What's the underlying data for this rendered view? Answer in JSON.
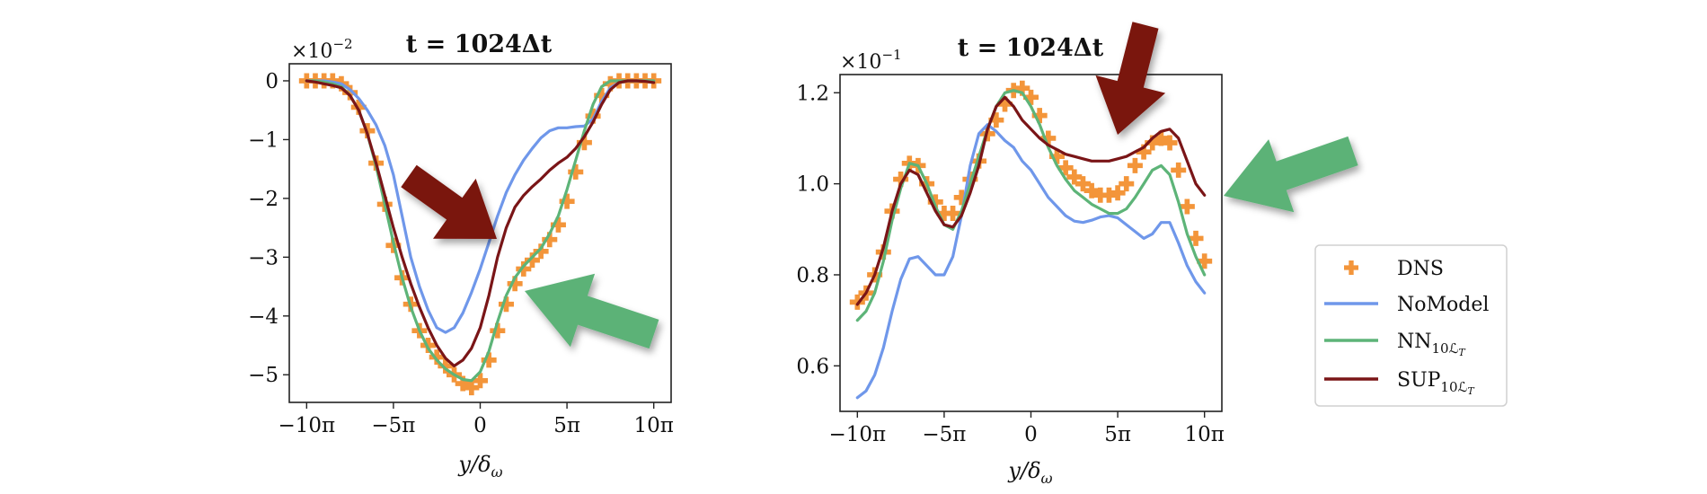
{
  "colors": {
    "dns": "#f3953a",
    "nomodel": "#6f97ea",
    "nn": "#5db478",
    "sup": "#7a1517",
    "arrow_red": "#7a1510",
    "arrow_green": "#5cb277"
  },
  "legend": {
    "placement": "right",
    "entries": [
      {
        "key": "dns",
        "label": "DNS",
        "sub": "",
        "subsub": "",
        "marker": "plus"
      },
      {
        "key": "nomodel",
        "label": "NoModel",
        "sub": "",
        "subsub": "",
        "marker": "line"
      },
      {
        "key": "nn",
        "label": "NN",
        "sub": "10ℒ",
        "subsub": "T",
        "marker": "line"
      },
      {
        "key": "sup",
        "label": "SUP",
        "sub": "10ℒ",
        "subsub": "T",
        "marker": "line"
      }
    ]
  },
  "chart_data": [
    {
      "type": "line",
      "title": "t = 1024Δt",
      "multiplier": "×10",
      "multiplier_exp": "−2",
      "xlabel": "y/δ",
      "xlabel_sub": "ω",
      "xlim": [
        -11,
        11
      ],
      "ylim": [
        -5.47,
        0.29
      ],
      "xticks": [
        {
          "v": -10,
          "label": "−10π"
        },
        {
          "v": -5,
          "label": "−5π"
        },
        {
          "v": 0,
          "label": "0"
        },
        {
          "v": 5,
          "label": "5π"
        },
        {
          "v": 10,
          "label": "10π"
        }
      ],
      "yticks": [
        {
          "v": 0,
          "label": "0"
        },
        {
          "v": -1,
          "label": "−1"
        },
        {
          "v": -2,
          "label": "−2"
        },
        {
          "v": -3,
          "label": "−3"
        },
        {
          "v": -4,
          "label": "−4"
        },
        {
          "v": -5,
          "label": "−5"
        }
      ],
      "x": [
        -10,
        -9.5,
        -9,
        -8.5,
        -8,
        -7.5,
        -7,
        -6.5,
        -6,
        -5.5,
        -5,
        -4.5,
        -4,
        -3.5,
        -3,
        -2.5,
        -2,
        -1.5,
        -1,
        -0.5,
        0,
        0.5,
        1,
        1.5,
        2,
        2.5,
        3,
        3.5,
        4,
        4.5,
        5,
        5.5,
        6,
        6.5,
        7,
        7.5,
        8,
        8.5,
        9,
        9.5,
        10
      ],
      "series": [
        {
          "key": "dns",
          "name": "DNS",
          "values": [
            0,
            0,
            0,
            0,
            -0.05,
            -0.2,
            -0.45,
            -0.85,
            -1.4,
            -2.1,
            -2.8,
            -3.35,
            -3.8,
            -4.25,
            -4.5,
            -4.7,
            -4.85,
            -5.0,
            -5.15,
            -5.22,
            -5.1,
            -4.75,
            -4.25,
            -3.8,
            -3.45,
            -3.2,
            -3.05,
            -2.9,
            -2.7,
            -2.45,
            -2.05,
            -1.55,
            -1.05,
            -0.6,
            -0.25,
            -0.05,
            0,
            0,
            0,
            0,
            0
          ]
        },
        {
          "key": "nomodel",
          "name": "NoModel",
          "values": [
            0,
            0,
            0,
            -0.02,
            -0.05,
            -0.15,
            -0.3,
            -0.5,
            -0.75,
            -1.1,
            -1.6,
            -2.3,
            -3.0,
            -3.5,
            -3.9,
            -4.2,
            -4.28,
            -4.2,
            -3.95,
            -3.6,
            -3.2,
            -2.75,
            -2.3,
            -1.9,
            -1.6,
            -1.35,
            -1.15,
            -0.97,
            -0.85,
            -0.8,
            -0.8,
            -0.78,
            -0.77,
            -0.65,
            -0.35,
            -0.12,
            -0.03,
            0,
            0,
            0,
            0
          ]
        },
        {
          "key": "nn",
          "name": "NN10ℒT",
          "values": [
            0,
            0,
            -0.02,
            -0.05,
            -0.1,
            -0.25,
            -0.5,
            -0.9,
            -1.45,
            -2.1,
            -2.75,
            -3.35,
            -3.85,
            -4.25,
            -4.55,
            -4.75,
            -4.9,
            -5.0,
            -5.08,
            -5.1,
            -4.95,
            -4.6,
            -4.1,
            -3.65,
            -3.35,
            -3.15,
            -3.0,
            -2.85,
            -2.6,
            -2.3,
            -1.85,
            -1.35,
            -0.85,
            -0.4,
            -0.1,
            0,
            0,
            0,
            0,
            0,
            0
          ]
        },
        {
          "key": "sup",
          "name": "SUP10ℒT",
          "values": [
            0,
            -0.02,
            -0.05,
            -0.08,
            -0.12,
            -0.25,
            -0.5,
            -0.9,
            -1.4,
            -1.95,
            -2.5,
            -3.0,
            -3.45,
            -3.85,
            -4.2,
            -4.5,
            -4.72,
            -4.85,
            -4.75,
            -4.55,
            -4.2,
            -3.65,
            -3.0,
            -2.5,
            -2.15,
            -1.95,
            -1.8,
            -1.67,
            -1.52,
            -1.4,
            -1.3,
            -1.15,
            -0.95,
            -0.7,
            -0.4,
            -0.15,
            -0.03,
            0,
            0,
            -0.01,
            -0.03
          ]
        }
      ]
    },
    {
      "type": "line",
      "title": "t = 1024Δt",
      "multiplier": "×10",
      "multiplier_exp": "−1",
      "xlabel": "y/δ",
      "xlabel_sub": "ω",
      "xlim": [
        -11,
        11
      ],
      "ylim": [
        0.5,
        1.24
      ],
      "xticks": [
        {
          "v": -10,
          "label": "−10π"
        },
        {
          "v": -5,
          "label": "−5π"
        },
        {
          "v": 0,
          "label": "0"
        },
        {
          "v": 5,
          "label": "5π"
        },
        {
          "v": 10,
          "label": "10π"
        }
      ],
      "yticks": [
        {
          "v": 1.2,
          "label": "1.2"
        },
        {
          "v": 1.0,
          "label": "1.0"
        },
        {
          "v": 0.8,
          "label": "0.8"
        },
        {
          "v": 0.6,
          "label": "0.6"
        }
      ],
      "x": [
        -10,
        -9.5,
        -9,
        -8.5,
        -8,
        -7.5,
        -7,
        -6.5,
        -6,
        -5.5,
        -5,
        -4.5,
        -4,
        -3.5,
        -3,
        -2.5,
        -2,
        -1.5,
        -1,
        -0.5,
        0,
        0.5,
        1,
        1.5,
        2,
        2.5,
        3,
        3.5,
        4,
        4.5,
        5,
        5.5,
        6,
        6.5,
        7,
        7.5,
        8,
        8.5,
        9,
        9.5,
        10
      ],
      "series": [
        {
          "key": "dns",
          "name": "DNS",
          "values": [
            0.74,
            0.76,
            0.8,
            0.85,
            0.94,
            1.01,
            1.045,
            1.04,
            1.0,
            0.96,
            0.935,
            0.935,
            0.97,
            1.01,
            1.05,
            1.11,
            1.14,
            1.175,
            1.205,
            1.21,
            1.19,
            1.15,
            1.1,
            1.06,
            1.035,
            1.015,
            1.0,
            0.985,
            0.975,
            0.975,
            0.98,
            1.0,
            1.04,
            1.07,
            1.09,
            1.1,
            1.09,
            1.03,
            0.95,
            0.88,
            0.83
          ]
        },
        {
          "key": "nomodel",
          "name": "NoModel",
          "values": [
            0.53,
            0.545,
            0.58,
            0.64,
            0.72,
            0.79,
            0.835,
            0.84,
            0.82,
            0.8,
            0.8,
            0.84,
            0.93,
            1.04,
            1.11,
            1.13,
            1.115,
            1.095,
            1.08,
            1.05,
            1.03,
            1.0,
            0.97,
            0.95,
            0.93,
            0.918,
            0.915,
            0.92,
            0.927,
            0.93,
            0.925,
            0.91,
            0.895,
            0.88,
            0.89,
            0.915,
            0.915,
            0.87,
            0.82,
            0.785,
            0.76
          ]
        },
        {
          "key": "nn",
          "name": "NN10ℒT",
          "values": [
            0.7,
            0.72,
            0.76,
            0.83,
            0.92,
            0.99,
            1.045,
            1.04,
            1.0,
            0.95,
            0.91,
            0.9,
            0.94,
            1.0,
            1.06,
            1.12,
            1.17,
            1.2,
            1.205,
            1.2,
            1.17,
            1.13,
            1.08,
            1.04,
            1.01,
            0.985,
            0.97,
            0.955,
            0.945,
            0.935,
            0.935,
            0.945,
            0.97,
            1.0,
            1.03,
            1.04,
            1.02,
            0.96,
            0.89,
            0.84,
            0.8
          ]
        },
        {
          "key": "sup",
          "name": "SUP10ℒT",
          "values": [
            0.735,
            0.76,
            0.8,
            0.86,
            0.94,
            1.0,
            1.03,
            1.02,
            0.98,
            0.94,
            0.91,
            0.905,
            0.93,
            0.98,
            1.04,
            1.12,
            1.17,
            1.19,
            1.17,
            1.14,
            1.12,
            1.1,
            1.085,
            1.075,
            1.065,
            1.06,
            1.055,
            1.05,
            1.05,
            1.05,
            1.055,
            1.06,
            1.07,
            1.08,
            1.1,
            1.115,
            1.12,
            1.1,
            1.05,
            1.0,
            0.975
          ]
        }
      ]
    }
  ]
}
